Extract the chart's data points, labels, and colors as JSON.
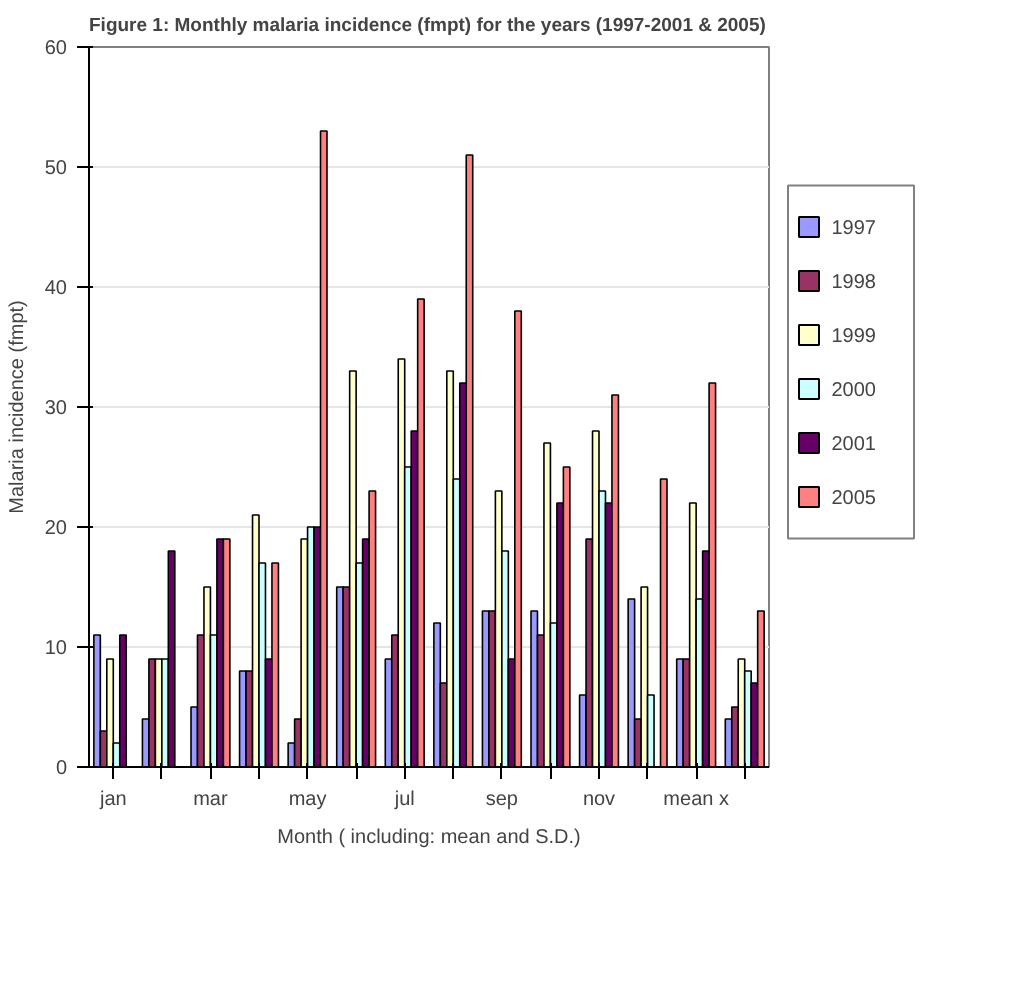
{
  "chart_data": {
    "type": "bar",
    "title": "Figure 1: Monthly malaria incidence (fmpt) for the years (1997-2001 & 2005)",
    "xlabel": "Month ( including: mean and S.D.)",
    "ylabel": "Malaria incidence (fmpt)",
    "categories": [
      "jan",
      null,
      "mar",
      null,
      "may",
      null,
      "jul",
      null,
      "sep",
      null,
      "nov",
      null,
      "mean x",
      null
    ],
    "series": [
      {
        "name": "1997",
        "color": "#9999ff",
        "values": [
          11,
          4,
          5,
          8,
          2,
          15,
          9,
          12,
          13,
          13,
          6,
          14,
          9,
          4
        ]
      },
      {
        "name": "1998",
        "color": "#993366",
        "values": [
          3,
          9,
          11,
          8,
          4,
          15,
          11,
          7,
          13,
          11,
          19,
          4,
          9,
          5
        ]
      },
      {
        "name": "1999",
        "color": "#ffffcc",
        "values": [
          9,
          9,
          15,
          21,
          19,
          33,
          34,
          33,
          23,
          27,
          28,
          15,
          22,
          9
        ]
      },
      {
        "name": "2000",
        "color": "#ccffff",
        "values": [
          2,
          9,
          11,
          17,
          20,
          17,
          25,
          24,
          18,
          12,
          23,
          6,
          14,
          8
        ]
      },
      {
        "name": "2001",
        "color": "#660066",
        "values": [
          11,
          18,
          19,
          9,
          20,
          19,
          28,
          32,
          9,
          22,
          22,
          0,
          18,
          7
        ]
      },
      {
        "name": "2005",
        "color": "#ff8080",
        "values": [
          0,
          0,
          19,
          17,
          53,
          23,
          39,
          51,
          38,
          25,
          31,
          24,
          32,
          13
        ]
      }
    ],
    "ylim": [
      0,
      60
    ],
    "yticks": [
      0,
      10,
      20,
      30,
      40,
      50,
      60
    ],
    "grid": "y",
    "legend": "right"
  }
}
